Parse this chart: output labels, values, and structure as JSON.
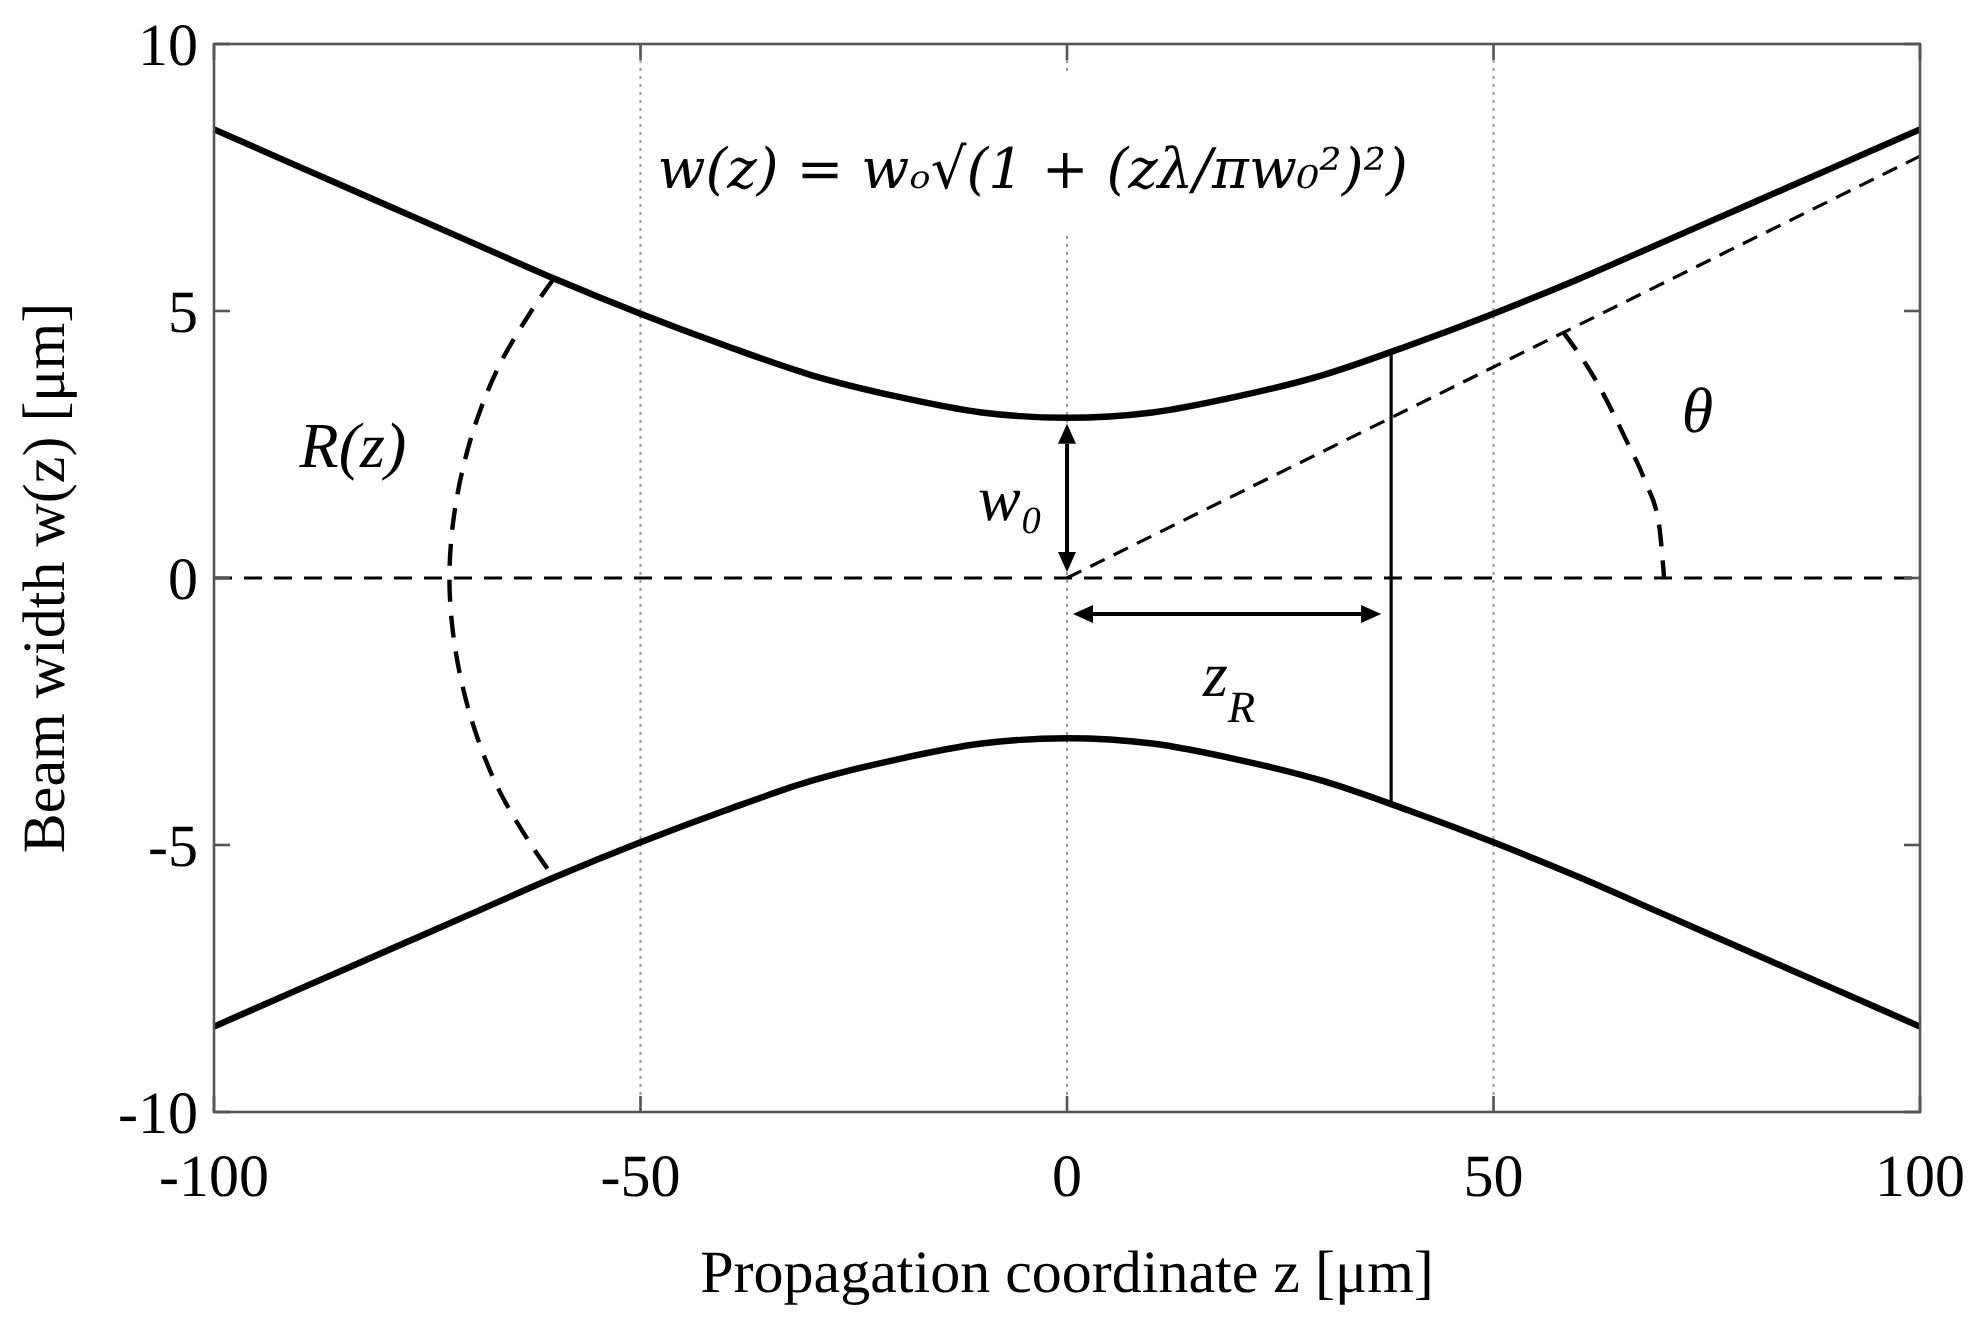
{
  "chart_data": {
    "type": "line",
    "xlabel": "Propagation coordinate z [μm]",
    "ylabel": "Beam width w(z) [μm]",
    "xlim": [
      -100,
      100
    ],
    "xticks": [
      -100,
      -50,
      0,
      50,
      100
    ],
    "ylim": [
      -10,
      10
    ],
    "yticks": [
      -10,
      -5,
      0,
      5,
      10
    ],
    "grid": "x",
    "series": [
      {
        "color": "#000000",
        "x": [
          -100,
          -90,
          -80,
          -70,
          -60,
          -50,
          -40,
          -30,
          -20,
          -10,
          0,
          10,
          20,
          30,
          40,
          50,
          60,
          70,
          80,
          90,
          100
        ],
        "values": [
          8.4,
          7.7,
          7.0,
          6.3,
          5.6,
          4.95,
          4.35,
          3.8,
          3.4,
          3.1,
          3.0,
          3.1,
          3.4,
          3.8,
          4.35,
          4.95,
          5.6,
          6.3,
          7.0,
          7.7,
          8.4
        ]
      },
      {
        "color": "#000000",
        "x": [
          -100,
          -90,
          -80,
          -70,
          -60,
          -50,
          -40,
          -30,
          -20,
          -10,
          0,
          10,
          20,
          30,
          40,
          50,
          60,
          70,
          80,
          90,
          100
        ],
        "values": [
          -8.4,
          -7.7,
          -7.0,
          -6.3,
          -5.6,
          -4.95,
          -4.35,
          -3.8,
          -3.4,
          -3.1,
          -3.0,
          -3.1,
          -3.4,
          -3.8,
          -4.35,
          -4.95,
          -5.6,
          -6.3,
          -7.0,
          -7.7,
          -8.4
        ]
      },
      {
        "color": "#000000",
        "line_style": "dashed",
        "x": [
          0,
          100
        ],
        "values": [
          0,
          7.9
        ]
      },
      {
        "color": "#000000",
        "x": [
          38,
          38
        ],
        "values": [
          4.2,
          -4.2
        ]
      },
      {
        "name": "R(z)",
        "color": "#000000",
        "line_style": "dashed",
        "x": [
          -60.2,
          -62.8,
          -66.5,
          -69.1,
          -70.9,
          -72.0,
          -72.4,
          -72.0,
          -70.9,
          -69.1,
          -66.5,
          -62.8,
          -60.2
        ],
        "values": [
          5.6,
          5,
          4,
          3,
          2,
          1,
          0,
          -1,
          -2,
          -3,
          -4,
          -5,
          -5.6
        ]
      },
      {
        "name": "θ",
        "color": "#000000",
        "line_style": "dashed",
        "x": [
          58.2,
          62.0,
          65.5,
          67.8,
          69.4,
          70.0
        ],
        "values": [
          4.6,
          3.7,
          2.6,
          1.8,
          1.0,
          0
        ]
      }
    ],
    "ref_lines": [
      {
        "axis": "y",
        "value": 0,
        "color": "#000000",
        "line_style": "dashed"
      }
    ],
    "annotations": [
      "w(z) = wₒ√(1 + (zλ/πw₀²)²)",
      {
        "text": "w₀",
        "x": 0,
        "y": 3
      },
      {
        "text": "z$_{R}$",
        "x": 38,
        "y": 0
      }
    ]
  }
}
